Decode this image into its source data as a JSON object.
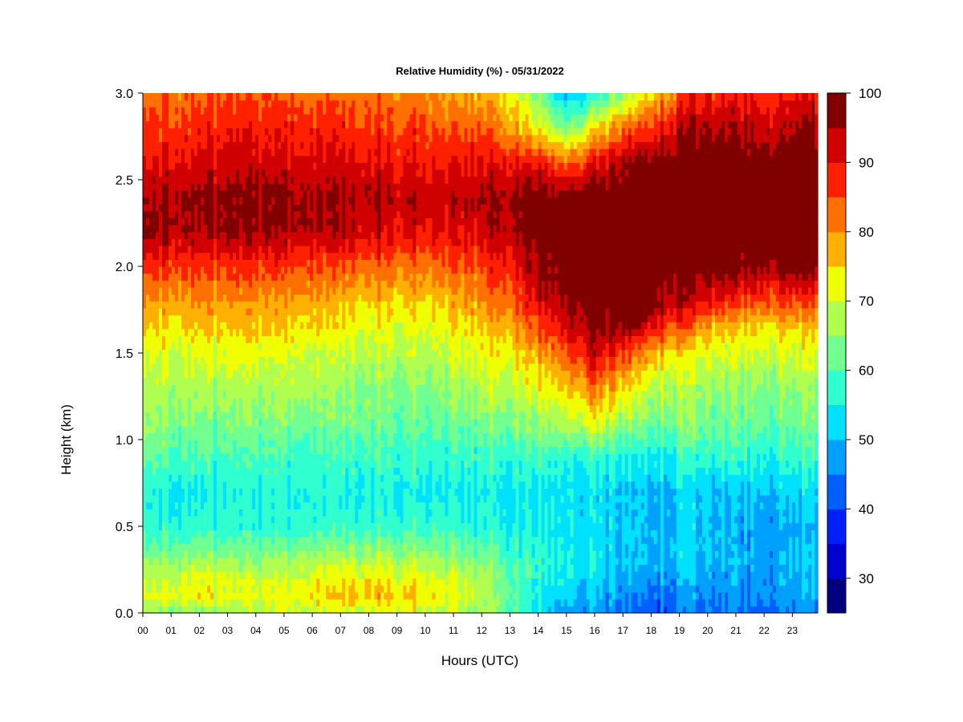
{
  "chart_data": {
    "type": "heatmap",
    "title": "Relative Humidity (%) - 05/31/2022",
    "xlabel": "Hours (UTC)",
    "ylabel": "Height (km)",
    "x_ticks": [
      "00",
      "01",
      "02",
      "03",
      "04",
      "05",
      "06",
      "07",
      "08",
      "09",
      "10",
      "11",
      "12",
      "13",
      "14",
      "15",
      "16",
      "17",
      "18",
      "19",
      "20",
      "21",
      "22",
      "23"
    ],
    "x_range_hours": [
      0,
      23.9
    ],
    "ylim": [
      0,
      3.0
    ],
    "y_ticks": [
      "0.0",
      "0.5",
      "1.0",
      "1.5",
      "2.0",
      "2.5",
      "3.0"
    ],
    "y_tick_values": [
      0,
      0.5,
      1.0,
      1.5,
      2.0,
      2.5,
      3.0
    ],
    "colorbar": {
      "min": 25,
      "max": 100,
      "step": 5,
      "tick_labels": [
        "30",
        "40",
        "50",
        "60",
        "70",
        "80",
        "90",
        "100"
      ],
      "tick_values": [
        30,
        40,
        50,
        60,
        70,
        80,
        90,
        100
      ],
      "colors": [
        "#00007f",
        "#0000cf",
        "#0020ff",
        "#0060ff",
        "#00a0ff",
        "#00e0ff",
        "#30ffd0",
        "#70ff90",
        "#b0ff50",
        "#f0ff00",
        "#ffb000",
        "#ff7000",
        "#ff2000",
        "#d00000",
        "#800000"
      ]
    },
    "field": {
      "hours": [
        0,
        2,
        4,
        6,
        8,
        10,
        12,
        13,
        14,
        15,
        16,
        17,
        18,
        19,
        20,
        21,
        22,
        23.9
      ],
      "heights_km": [
        0,
        0.1,
        0.2,
        0.3,
        0.5,
        0.7,
        0.9,
        1.1,
        1.3,
        1.5,
        1.65,
        1.8,
        2.0,
        2.2,
        2.4,
        2.6,
        2.8,
        3.0
      ],
      "rh_percent": [
        [
          64,
          64,
          66,
          70,
          71,
          71,
          66,
          62,
          52,
          47,
          46,
          44,
          42,
          44,
          44,
          44,
          44,
          46
        ],
        [
          71,
          73,
          71,
          74,
          77,
          75,
          69,
          62,
          55,
          52,
          50,
          46,
          44,
          46,
          46,
          46,
          47,
          48
        ],
        [
          68,
          71,
          69,
          72,
          74,
          72,
          68,
          62,
          57,
          54,
          52,
          48,
          47,
          49,
          48,
          47,
          47,
          49
        ],
        [
          64,
          66,
          64,
          68,
          69,
          68,
          64,
          60,
          57,
          55,
          54,
          50,
          50,
          52,
          50,
          49,
          48,
          50
        ],
        [
          57,
          56,
          56,
          58,
          58,
          59,
          56,
          55,
          55,
          54,
          53,
          51,
          50,
          52,
          50,
          48,
          48,
          48
        ],
        [
          55,
          54,
          55,
          56,
          56,
          55,
          55,
          54,
          54,
          54,
          53,
          51,
          50,
          52,
          51,
          50,
          51,
          52
        ],
        [
          61,
          59,
          58,
          59,
          59,
          58,
          58,
          58,
          59,
          57,
          57,
          56,
          55,
          58,
          57,
          57,
          57,
          57
        ],
        [
          65,
          63,
          63,
          63,
          63,
          62,
          63,
          64,
          66,
          68,
          72,
          66,
          63,
          64,
          63,
          62,
          62,
          62
        ],
        [
          68,
          67,
          67,
          67,
          65,
          65,
          68,
          69,
          72,
          76,
          82,
          75,
          69,
          68,
          66,
          65,
          65,
          65
        ],
        [
          71,
          71,
          71,
          70,
          69,
          69,
          72,
          74,
          78,
          85,
          92,
          86,
          78,
          74,
          71,
          70,
          70,
          70
        ],
        [
          74,
          75,
          75,
          75,
          72,
          72,
          76,
          79,
          85,
          92,
          98,
          97,
          92,
          85,
          78,
          76,
          75,
          76
        ],
        [
          80,
          79,
          79,
          79,
          76,
          76,
          80,
          84,
          91,
          97,
          100,
          100,
          99,
          95,
          90,
          87,
          85,
          86
        ],
        [
          87,
          86,
          86,
          86,
          84,
          83,
          86,
          90,
          96,
          100,
          100,
          100,
          100,
          100,
          99,
          98,
          97,
          97
        ],
        [
          96,
          95,
          95,
          95,
          93,
          91,
          92,
          95,
          99,
          100,
          100,
          100,
          100,
          100,
          100,
          100,
          100,
          100
        ],
        [
          95,
          96,
          96,
          96,
          95,
          94,
          95,
          97,
          99,
          99,
          100,
          100,
          100,
          100,
          100,
          100,
          100,
          100
        ],
        [
          90,
          91,
          92,
          92,
          91,
          90,
          90,
          91,
          89,
          84,
          90,
          95,
          98,
          100,
          100,
          100,
          100,
          100
        ],
        [
          86,
          87,
          88,
          88,
          87,
          86,
          84,
          80,
          72,
          64,
          74,
          82,
          87,
          94,
          95,
          95,
          93,
          95
        ],
        [
          82,
          83,
          84,
          84,
          82,
          81,
          78,
          74,
          64,
          50,
          55,
          65,
          75,
          85,
          88,
          88,
          88,
          90
        ]
      ]
    }
  }
}
